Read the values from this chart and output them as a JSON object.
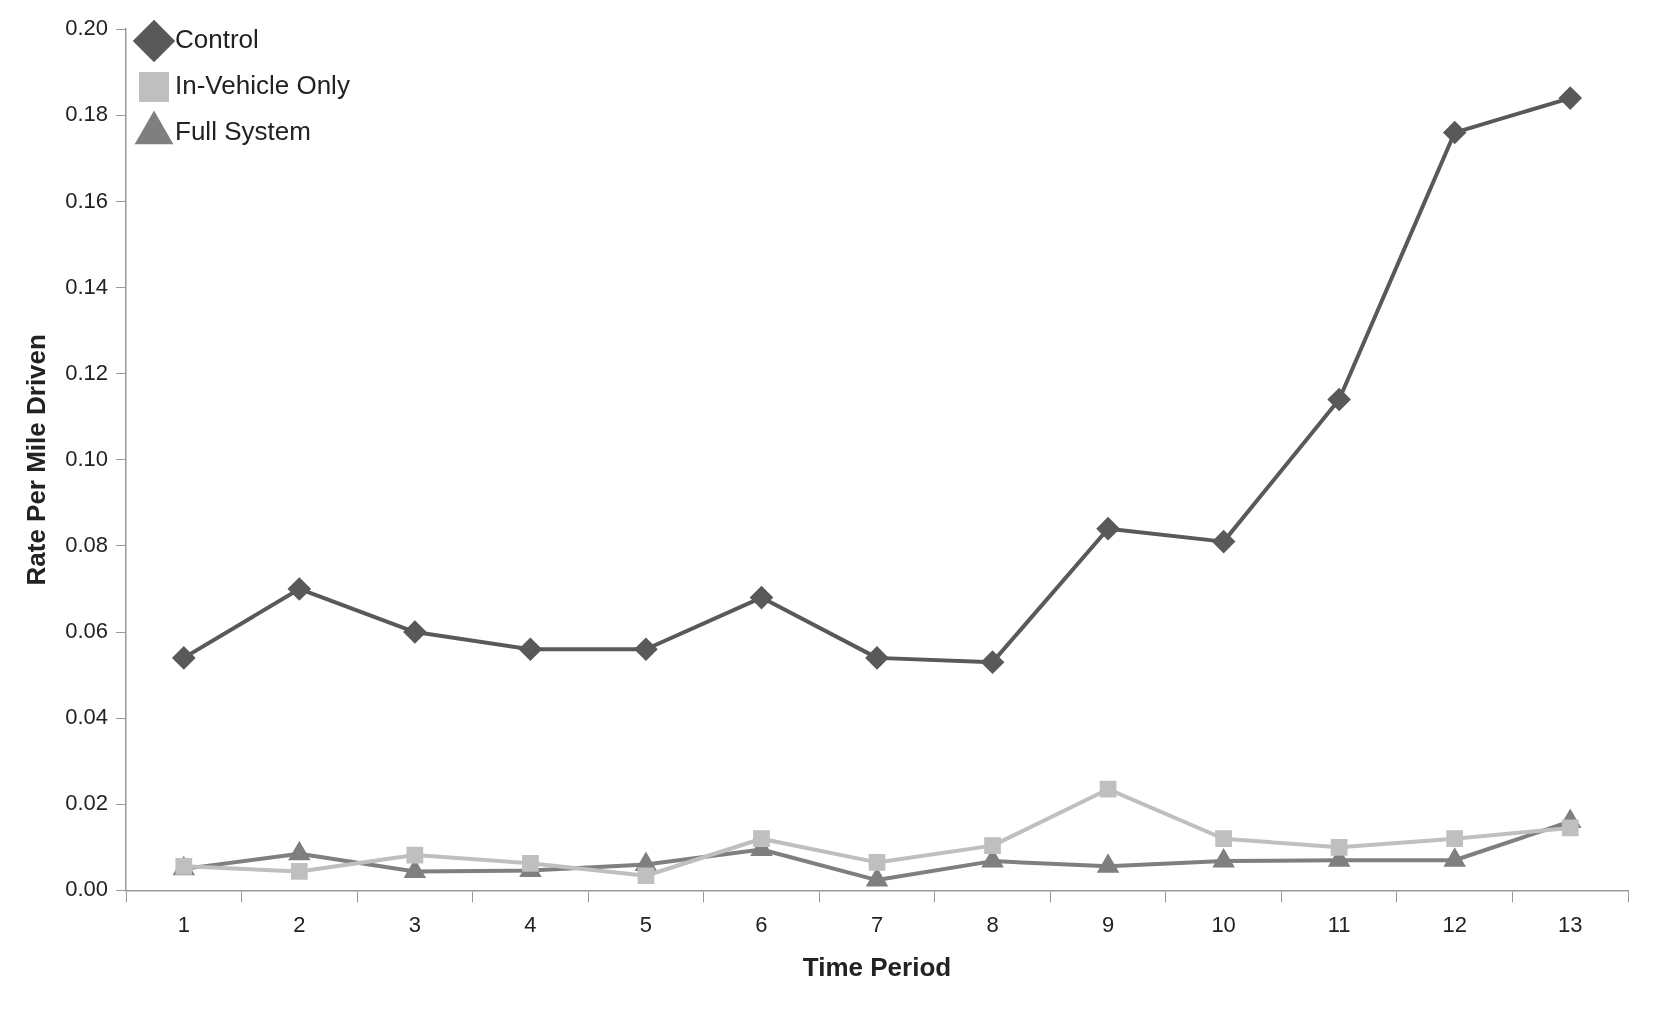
{
  "chart_data": {
    "type": "line",
    "xlabel": "Time Period",
    "ylabel": "Rate Per Mile Driven",
    "x": [
      1,
      2,
      3,
      4,
      5,
      6,
      7,
      8,
      9,
      10,
      11,
      12,
      13
    ],
    "series": [
      {
        "name": "Control",
        "color": "#595959",
        "marker": "diamond",
        "values": [
          0.054,
          0.07,
          0.06,
          0.056,
          0.056,
          0.068,
          0.054,
          0.053,
          0.084,
          0.081,
          0.114,
          0.176,
          0.184
        ]
      },
      {
        "name": "In-Vehicle Only",
        "color": "#bfbfbf",
        "marker": "square",
        "values": [
          0.0056,
          0.0044,
          0.0082,
          0.0063,
          0.0034,
          0.012,
          0.0065,
          0.0104,
          0.0235,
          0.012,
          0.01,
          0.012,
          0.0145
        ]
      },
      {
        "name": "Full System",
        "color": "#7f7f7f",
        "marker": "triangle",
        "values": [
          0.005,
          0.0085,
          0.0044,
          0.0046,
          0.006,
          0.0095,
          0.0024,
          0.0068,
          0.0056,
          0.0068,
          0.007,
          0.007,
          0.016
        ]
      }
    ],
    "xlim": [
      0.5,
      13.5
    ],
    "xticks": [
      {
        "value": 0.5,
        "label": null
      },
      1,
      {
        "value": 1.5,
        "label": null
      },
      2,
      {
        "value": 2.5,
        "label": null
      },
      3,
      {
        "value": 3.5,
        "label": null
      },
      4,
      {
        "value": 4.5,
        "label": null
      },
      5,
      {
        "value": 5.5,
        "label": null
      },
      6,
      {
        "value": 6.5,
        "label": null
      },
      7,
      {
        "value": 7.5,
        "label": null
      },
      8,
      {
        "value": 8.5,
        "label": null
      },
      9,
      {
        "value": 9.5,
        "label": null
      },
      10,
      {
        "value": 10.5,
        "label": null
      },
      11,
      {
        "value": 11.5,
        "label": null
      },
      12,
      {
        "value": 12.5,
        "label": null
      },
      13,
      {
        "value": 13.5,
        "label": null
      }
    ],
    "ylim": [
      0,
      0.2
    ],
    "yticks": [
      {
        "value": 0,
        "label": "0.00"
      },
      {
        "value": 0.02,
        "label": "0.02"
      },
      {
        "value": 0.04,
        "label": "0.04"
      },
      {
        "value": 0.06,
        "label": "0.06"
      },
      {
        "value": 0.08,
        "label": "0.08"
      },
      {
        "value": 0.1,
        "label": "0.10"
      },
      {
        "value": 0.12,
        "label": "0.12"
      },
      {
        "value": 0.14,
        "label": "0.14"
      },
      {
        "value": 0.16,
        "label": "0.16"
      },
      {
        "value": 0.18,
        "label": "0.18"
      },
      {
        "value": 0.2,
        "label": "0.20"
      }
    ],
    "grid": false,
    "legend": "top left",
    "line_style": "solid"
  }
}
